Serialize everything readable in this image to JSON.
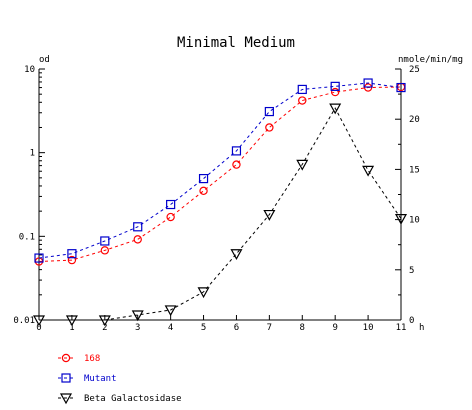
{
  "chart_data": {
    "type": "line",
    "title": "Minimal Medium",
    "x": [
      0,
      1,
      2,
      3,
      4,
      5,
      6,
      7,
      8,
      9,
      10,
      11
    ],
    "x_tick_labels": [
      "0",
      "1",
      "2",
      "3",
      "4",
      "5",
      "6",
      "7",
      "8",
      "9",
      "10",
      "11"
    ],
    "xlabel": "h",
    "xlim": [
      0,
      11
    ],
    "y_left": {
      "label": "od",
      "scale": "log",
      "lim": [
        0.01,
        10
      ],
      "ticks": [
        0.01,
        0.1,
        1,
        10
      ],
      "tick_labels": [
        "0.01",
        "0.1",
        "1",
        "10"
      ]
    },
    "y_right": {
      "label": "nmole/min/mg",
      "scale": "linear",
      "lim": [
        0,
        25
      ],
      "ticks": [
        0,
        5,
        10,
        15,
        20,
        25
      ],
      "tick_labels": [
        "0",
        "5",
        "10",
        "15",
        "20",
        "25"
      ]
    },
    "grid": false,
    "legend_position": "bottom-left",
    "series": [
      {
        "name": "168",
        "axis": "left",
        "color": "#ff0000",
        "marker": "circle",
        "line_style": "dashed",
        "values": [
          0.05,
          0.052,
          0.068,
          0.092,
          0.17,
          0.35,
          0.72,
          2.0,
          4.2,
          5.3,
          6.0,
          6.1
        ]
      },
      {
        "name": "Mutant",
        "axis": "left",
        "color": "#0000cc",
        "marker": "square",
        "line_style": "dashed",
        "values": [
          0.055,
          0.062,
          0.088,
          0.13,
          0.24,
          0.49,
          1.05,
          3.1,
          5.7,
          6.2,
          6.8,
          6.0
        ]
      },
      {
        "name": "Beta Galactosidase",
        "axis": "right",
        "color": "#000000",
        "marker": "triangle-down",
        "line_style": "dashed",
        "values": [
          0,
          0,
          0,
          0.5,
          1.0,
          2.8,
          6.6,
          10.5,
          15.5,
          21.1,
          14.9,
          10.1
        ]
      }
    ]
  }
}
